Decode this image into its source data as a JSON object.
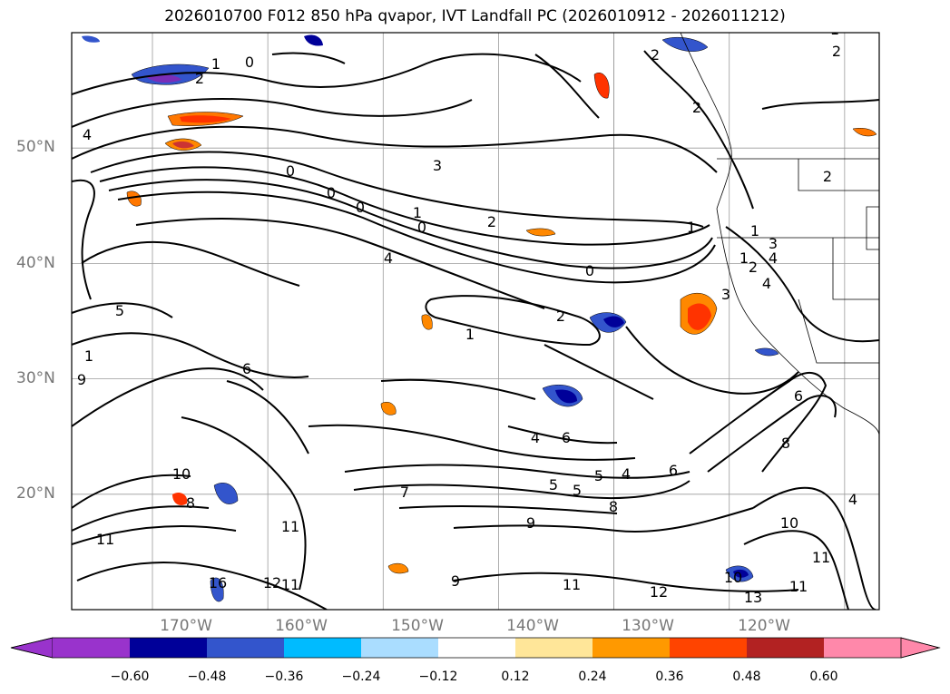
{
  "title": "2026010700 F012 850 hPa qvapor, IVT Landfall PC (2026010912 - 2026011212)",
  "map": {
    "lat_labels": [
      "50°N",
      "40°N",
      "30°N",
      "20°N"
    ],
    "lon_labels": [
      "170°W",
      "160°W",
      "150°W",
      "140°W",
      "130°W",
      "120°W"
    ],
    "lat_values": [
      50,
      40,
      30,
      20
    ],
    "lon_values": [
      -170,
      -160,
      -150,
      -140,
      -130,
      -120
    ],
    "extent": {
      "lon": [
        -177,
        -107
      ],
      "lat": [
        10,
        60
      ]
    },
    "grid": true,
    "contour_labels": [
      "1",
      "2",
      "0",
      "2",
      "4",
      "3",
      "0",
      "0",
      "0",
      "1",
      "2",
      "0",
      "1",
      "4",
      "0",
      "4",
      "2",
      "1",
      "1",
      "2",
      "2",
      "9",
      "1",
      "6",
      "6",
      "4",
      "5",
      "6",
      "5",
      "4",
      "8",
      "6",
      "8",
      "10",
      "5",
      "7",
      "9",
      "8",
      "4",
      "10",
      "11",
      "11",
      "9",
      "11",
      "12",
      "11",
      "13",
      "10",
      "11",
      "12",
      "11",
      "16",
      "5",
      "1",
      "4",
      "3",
      "2",
      "1",
      "3",
      "2"
    ]
  },
  "colorbar": {
    "ticks": [
      "−0.60",
      "−0.48",
      "−0.36",
      "−0.24",
      "−0.12",
      "0.12",
      "0.24",
      "0.36",
      "0.48",
      "0.60"
    ],
    "colors": [
      "#9933cc",
      "#000099",
      "#3355cc",
      "#00bbff",
      "#aaddff",
      "#ffffff",
      "#ffe699",
      "#ff9900",
      "#ff4400",
      "#b22222",
      "#ff88aa"
    ]
  }
}
